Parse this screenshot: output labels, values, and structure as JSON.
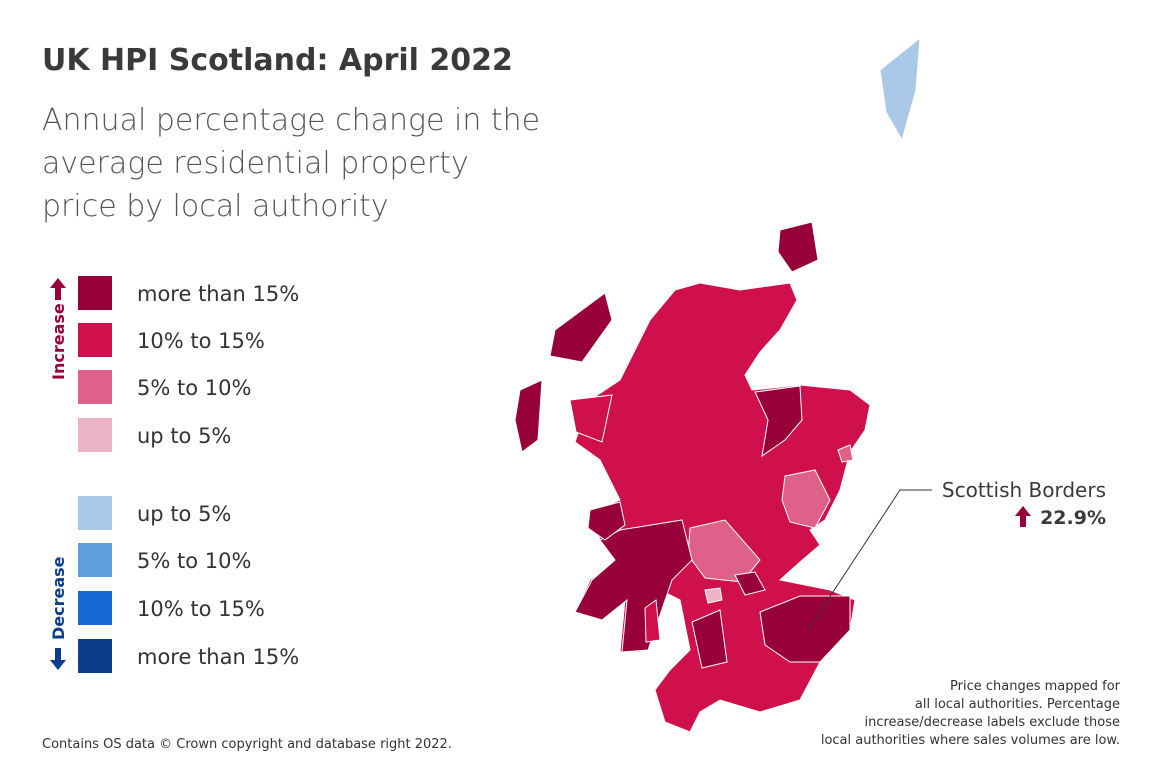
{
  "header": {
    "title": "UK HPI Scotland: April 2022",
    "subtitle": [
      "Annual percentage change in the",
      "average residential property",
      "price by local authority"
    ]
  },
  "legend": {
    "groups": [
      {
        "label": "Increase",
        "items": [
          {
            "label": "more than 15%",
            "color": "#98003a"
          },
          {
            "label": "10% to 15%",
            "color": "#d0104c"
          },
          {
            "label": "5% to 10%",
            "color": "#df6089"
          },
          {
            "label": "up to 5%",
            "color": "#ecb3c8"
          }
        ]
      },
      {
        "label": "Decrease",
        "items": [
          {
            "label": "up to 5%",
            "color": "#a9c8e8"
          },
          {
            "label": "5% to 10%",
            "color": "#5f9edb"
          },
          {
            "label": "10% to 15%",
            "color": "#146ad2"
          },
          {
            "label": "more than 15%",
            "color": "#0a3e8a"
          }
        ]
      }
    ]
  },
  "annotation": {
    "region": "Scottish Borders",
    "change": "22.9%"
  },
  "notes": {
    "source": "Contains OS data © Crown copyright and database right 2022.",
    "caveat": [
      "Price changes mapped for",
      "all local authorities. Percentage",
      "increase/decrease labels exclude those",
      "local authorities where sales volumes are low."
    ]
  }
}
